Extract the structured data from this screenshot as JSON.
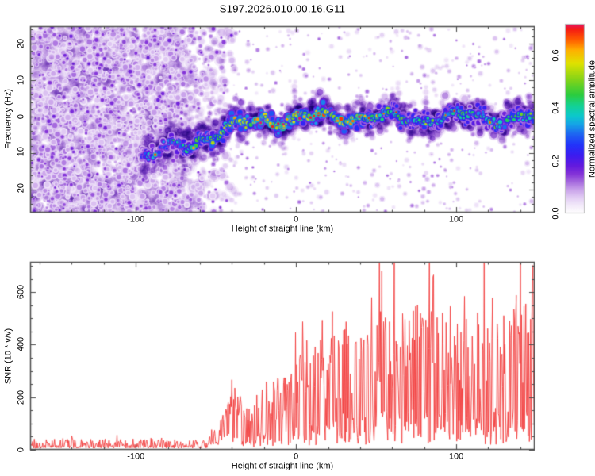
{
  "title": "S197.2026.010.00.16.G11",
  "colors": {
    "axis": "#4a4a4a",
    "snr_line": "#f23b3b",
    "text": "#000000",
    "background": "#ffffff"
  },
  "seed": 1970110,
  "chart_data": [
    {
      "type": "heatmap",
      "name": "doppler-spectrogram",
      "xlabel": "Height of straight line (km)",
      "ylabel": "Frequency (Hz)",
      "xlim": [
        -166,
        149
      ],
      "ylim": [
        -26.3,
        24.8
      ],
      "xticks": [
        -100,
        0,
        100
      ],
      "xtick_minor_step": 20,
      "yticks": [
        20,
        10,
        0,
        -10,
        -20
      ],
      "ytick_minor_step": 2,
      "grid": false,
      "colorbar": {
        "label": "Normalized spectral amplitude",
        "tick_labels": [
          "0.0",
          "0.2",
          "0.4",
          "0.6"
        ],
        "tick_values": [
          0.0,
          0.2,
          0.4,
          0.6
        ],
        "range": [
          0.0,
          0.72
        ],
        "colormap": [
          [
            0.0,
            "#ffffff"
          ],
          [
            0.03,
            "#f3eafa"
          ],
          [
            0.06,
            "#e2cdf4"
          ],
          [
            0.09,
            "#c9a2ea"
          ],
          [
            0.12,
            "#a569de"
          ],
          [
            0.15,
            "#8433d8"
          ],
          [
            0.18,
            "#641ade"
          ],
          [
            0.22,
            "#3c1cf0"
          ],
          [
            0.26,
            "#2233fa"
          ],
          [
            0.3,
            "#1e64f2"
          ],
          [
            0.34,
            "#15a6e6"
          ],
          [
            0.37,
            "#0cc8cc"
          ],
          [
            0.41,
            "#14d292"
          ],
          [
            0.45,
            "#2bcc3e"
          ],
          [
            0.51,
            "#86d418"
          ],
          [
            0.57,
            "#e0e200"
          ],
          [
            0.62,
            "#ffb000"
          ],
          [
            0.66,
            "#ff5a00"
          ],
          [
            0.7,
            "#f51a14"
          ],
          [
            0.72,
            "#e2186e"
          ]
        ]
      },
      "noise_field": {
        "x_range": [
          -166,
          -35
        ],
        "full_density_until": -82,
        "fade_to_zero_at": -35,
        "amplitude_range": [
          0.02,
          0.17
        ],
        "note": "broadband speckle noise fills all frequencies below about -60 km"
      },
      "signal_trace": {
        "center_freq_points": [
          [
            -96,
            -11
          ],
          [
            -80,
            -9
          ],
          [
            -65,
            -7
          ],
          [
            -50,
            -4.5
          ],
          [
            -35,
            -2.5
          ],
          [
            -20,
            -1
          ],
          [
            0,
            -0.5
          ],
          [
            25,
            0
          ],
          [
            60,
            -0.5
          ],
          [
            100,
            0
          ],
          [
            149,
            -0.5
          ]
        ],
        "amplitude_points": [
          [
            -96,
            0.3
          ],
          [
            -70,
            0.4
          ],
          [
            -50,
            0.5
          ],
          [
            -30,
            0.58
          ],
          [
            -15,
            0.62
          ],
          [
            10,
            0.62
          ],
          [
            30,
            0.58
          ],
          [
            50,
            0.48
          ],
          [
            70,
            0.44
          ],
          [
            100,
            0.44
          ],
          [
            130,
            0.43
          ],
          [
            149,
            0.45
          ]
        ],
        "band_halfwidth_hz": 6,
        "hot_zone_km": [
          -25,
          45
        ]
      }
    },
    {
      "type": "line",
      "name": "snr-profile",
      "xlabel": "Height of straight line (km)",
      "ylabel": "SNR (10 * v/v)",
      "xlim": [
        -166,
        149
      ],
      "ylim": [
        0,
        715
      ],
      "xticks": [
        -100,
        0,
        100
      ],
      "xtick_minor_step": 20,
      "yticks": [
        0,
        200,
        400,
        600
      ],
      "ytick_minor_step": 50,
      "grid": false,
      "noise_floor": {
        "x_range": [
          -166,
          -55
        ],
        "mean": 28,
        "max": 75
      },
      "envelope": [
        [
          -166,
          45
        ],
        [
          -120,
          45
        ],
        [
          -80,
          48
        ],
        [
          -60,
          60
        ],
        [
          -50,
          110
        ],
        [
          -42,
          260
        ],
        [
          -38,
          320
        ],
        [
          -33,
          170
        ],
        [
          -27,
          150
        ],
        [
          -20,
          260
        ],
        [
          -14,
          220
        ],
        [
          -8,
          250
        ],
        [
          0,
          290
        ],
        [
          8,
          330
        ],
        [
          15,
          330
        ],
        [
          22,
          360
        ],
        [
          30,
          420
        ],
        [
          38,
          380
        ],
        [
          45,
          400
        ],
        [
          52,
          460
        ],
        [
          60,
          420
        ],
        [
          68,
          440
        ],
        [
          75,
          470
        ],
        [
          80,
          420
        ],
        [
          82,
          560
        ],
        [
          86,
          420
        ],
        [
          92,
          450
        ],
        [
          100,
          470
        ],
        [
          108,
          420
        ],
        [
          115,
          450
        ],
        [
          122,
          500
        ],
        [
          130,
          450
        ],
        [
          138,
          500
        ],
        [
          144,
          460
        ],
        [
          149,
          480
        ]
      ],
      "peak": {
        "h_km": 82,
        "value": 715
      }
    }
  ]
}
